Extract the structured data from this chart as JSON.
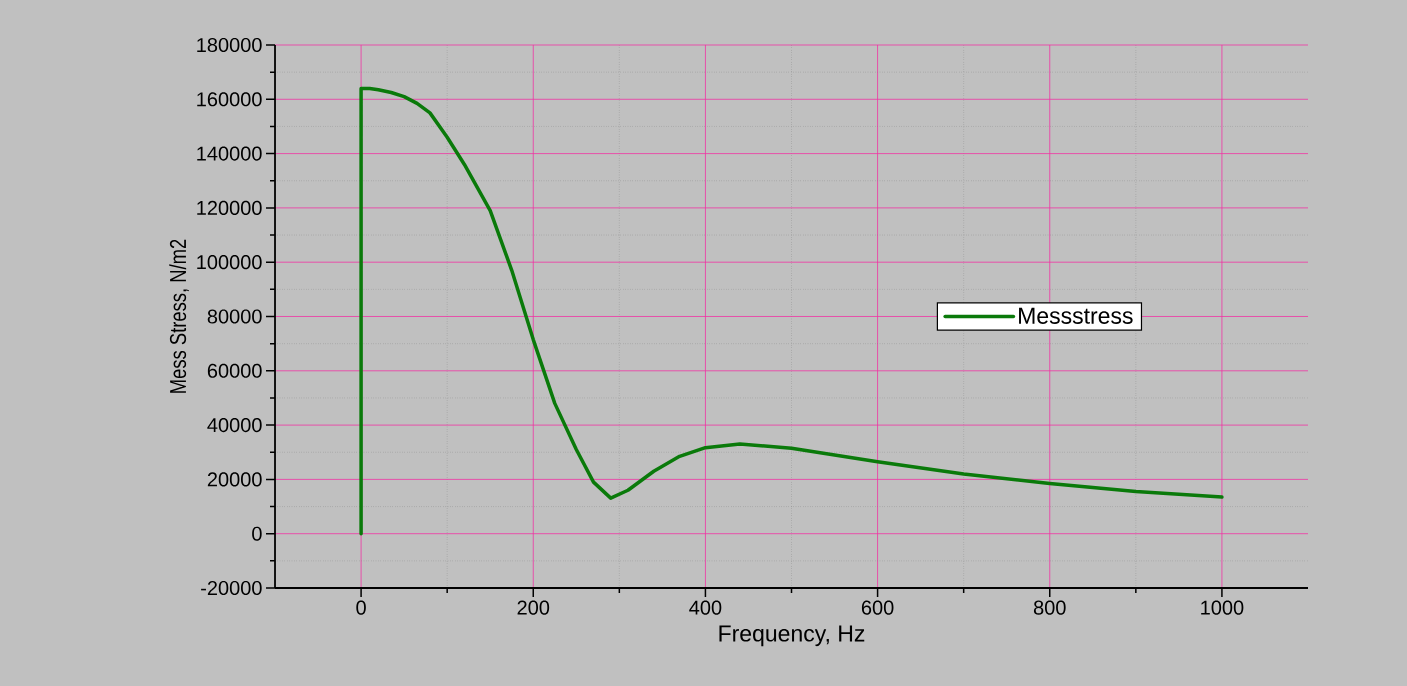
{
  "chart_data": {
    "type": "line",
    "xlabel": "Frequency, Hz",
    "ylabel": "Mess Stress, N/m2",
    "xlim": [
      -100,
      1100
    ],
    "xticks": [
      0,
      200,
      400,
      600,
      800,
      1000
    ],
    "ylim": [
      -20000,
      180000
    ],
    "yticks": [
      -20000,
      0,
      20000,
      40000,
      60000,
      80000,
      100000,
      120000,
      140000,
      160000,
      180000
    ],
    "grid": true,
    "legend": "right",
    "series": [
      {
        "name": "Messstress",
        "color": "#0a7a0a",
        "x": [
          0,
          0,
          10,
          20,
          35,
          50,
          65,
          80,
          100,
          120,
          150,
          175,
          200,
          225,
          250,
          270,
          290,
          310,
          340,
          370,
          400,
          440,
          500,
          600,
          700,
          800,
          900,
          1000
        ],
        "values": [
          0,
          164000,
          164000,
          163500,
          162500,
          161000,
          158500,
          155000,
          146000,
          136000,
          119000,
          97000,
          71500,
          48000,
          31000,
          19000,
          13100,
          16000,
          23000,
          28500,
          31700,
          33000,
          31500,
          26500,
          22000,
          18500,
          15500,
          13500
        ]
      }
    ]
  }
}
